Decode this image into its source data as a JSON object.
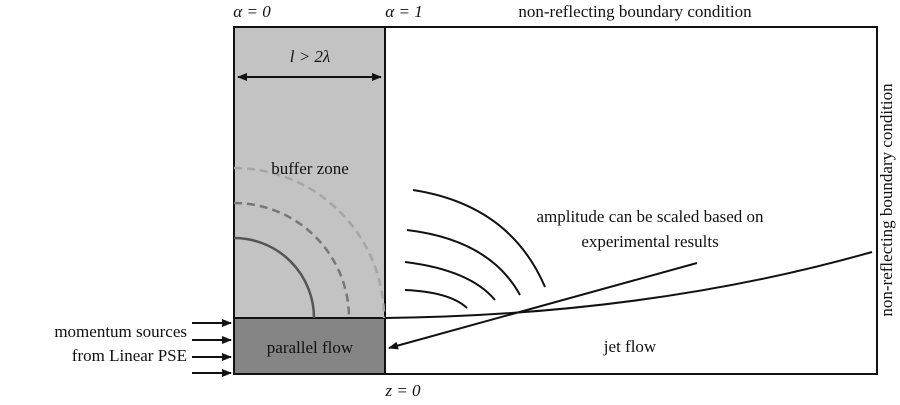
{
  "labels": {
    "alpha0": "α = 0",
    "alpha1": "α = 1",
    "top_boundary": "non-reflecting boundary condition",
    "right_boundary": "non-reflecting boundary condition",
    "length": "l > 2λ",
    "buffer_zone": "buffer zone",
    "amplitude_line1": "amplitude can be scaled based on",
    "amplitude_line2": "experimental results",
    "jet_flow": "jet flow",
    "parallel_flow": "parallel flow",
    "z0": "z = 0",
    "sources_line1": "momentum sources",
    "sources_line2": "from Linear PSE"
  }
}
